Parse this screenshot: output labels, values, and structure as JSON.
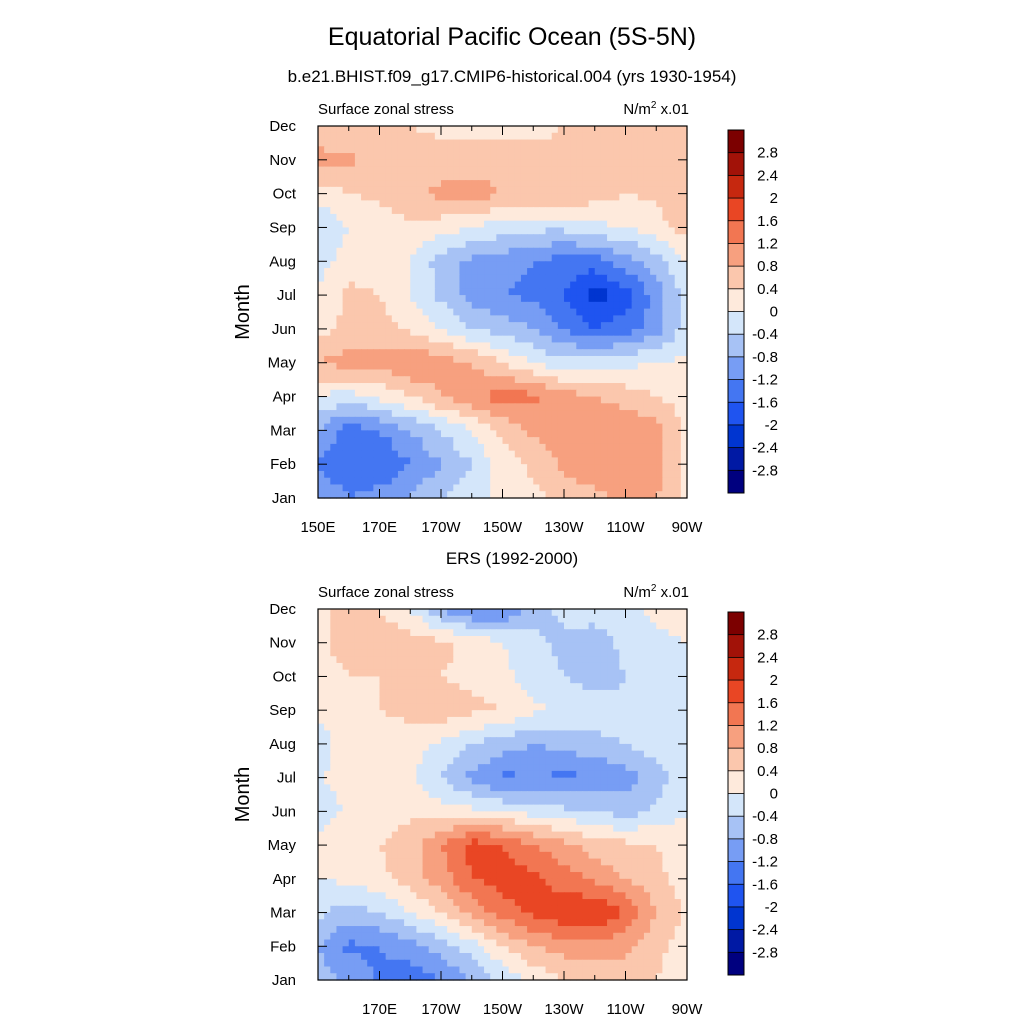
{
  "figure": {
    "title": "Equatorial Pacific Ocean (5S-5N)"
  },
  "colorbar": {
    "levels": [
      -2.8,
      -2.4,
      -2,
      -1.6,
      -1.2,
      -0.8,
      -0.4,
      0,
      0.4,
      0.8,
      1.2,
      1.6,
      2,
      2.4,
      2.8
    ],
    "labels": [
      "2.8",
      "2.4",
      "2",
      "1.6",
      "1.2",
      "0.8",
      "0.4",
      "0",
      "-0.4",
      "-0.8",
      "-1.2",
      "-1.6",
      "-2",
      "-2.4",
      "-2.8"
    ],
    "colors": [
      "#00007f",
      "#0019a4",
      "#0035d0",
      "#1f54f0",
      "#4476f2",
      "#779df4",
      "#a7c2f5",
      "#d4e6fa",
      "#feeadc",
      "#fbc7ad",
      "#f7a07f",
      "#f27652",
      "#e94624",
      "#c6280f",
      "#a21208",
      "#7c0000"
    ]
  },
  "chart_data": [
    {
      "type": "heatmap",
      "title": "b.e21.BHIST.f09_g17.CMIP6-historical.004 (yrs 1930-1954)",
      "left_string": "Surface zonal stress",
      "right_string_prefix": "N/m",
      "right_string_sup": "2",
      "right_string_suffix": " x.01",
      "ylabel": "Month",
      "xlabel": "",
      "x_tick_labels": [
        "150E",
        "170E",
        "170W",
        "150W",
        "130W",
        "110W",
        "90W"
      ],
      "y_tick_labels": [
        "Jan",
        "Feb",
        "Mar",
        "Apr",
        "May",
        "Jun",
        "Jul",
        "Aug",
        "Sep",
        "Oct",
        "Nov",
        "Dec"
      ],
      "x_lon": [
        150,
        160,
        170,
        180,
        190,
        200,
        210,
        220,
        230,
        240,
        250,
        260,
        270
      ],
      "y_month": [
        1,
        2,
        3,
        4,
        5,
        6,
        7,
        8,
        9,
        10,
        11,
        12
      ],
      "xlim": [
        150,
        270
      ],
      "ylim": [
        1,
        12
      ],
      "values": [
        [
          -0.8,
          -1.2,
          -1.0,
          -0.8,
          -0.4,
          -0.2,
          0.1,
          0.3,
          0.5,
          0.7,
          0.9,
          0.8,
          0.3
        ],
        [
          -1.2,
          -1.6,
          -1.6,
          -1.2,
          -0.8,
          -0.4,
          0.2,
          0.5,
          0.9,
          1.1,
          1.1,
          1.0,
          0.3
        ],
        [
          -0.8,
          -1.4,
          -1.2,
          -0.8,
          -0.4,
          0.0,
          0.5,
          0.9,
          1.0,
          1.2,
          1.1,
          1.0,
          0.3
        ],
        [
          0.0,
          -0.2,
          0.1,
          0.4,
          0.8,
          1.1,
          1.4,
          1.3,
          1.0,
          0.8,
          0.6,
          0.4,
          0.2
        ],
        [
          0.8,
          1.0,
          1.0,
          1.2,
          1.0,
          0.8,
          0.4,
          0.0,
          -0.3,
          -0.2,
          -0.1,
          0.0,
          0.1
        ],
        [
          0.2,
          0.5,
          0.6,
          0.3,
          0.0,
          -0.4,
          -0.6,
          -0.8,
          -1.2,
          -1.6,
          -1.4,
          -1.0,
          -0.2
        ],
        [
          0.1,
          0.5,
          0.4,
          0.0,
          -0.5,
          -1.0,
          -1.2,
          -1.3,
          -1.6,
          -2.2,
          -1.8,
          -1.0,
          -0.2
        ],
        [
          -0.2,
          0.2,
          0.2,
          0.0,
          -0.6,
          -0.9,
          -1.0,
          -1.2,
          -1.4,
          -1.4,
          -1.0,
          -0.6,
          0.0
        ],
        [
          -0.4,
          0.0,
          0.2,
          0.3,
          0.2,
          0.0,
          -0.2,
          -0.3,
          -0.3,
          -0.1,
          0.0,
          0.2,
          0.6
        ],
        [
          0.2,
          0.4,
          0.5,
          0.7,
          0.9,
          1.0,
          0.8,
          0.8,
          0.8,
          0.6,
          0.4,
          0.5,
          0.8
        ],
        [
          1.0,
          0.9,
          0.7,
          0.6,
          0.6,
          0.6,
          0.6,
          0.5,
          0.5,
          0.5,
          0.5,
          0.6,
          0.7
        ],
        [
          0.4,
          0.4,
          0.5,
          0.4,
          0.3,
          0.3,
          0.3,
          0.3,
          0.4,
          0.4,
          0.5,
          0.5,
          0.5
        ]
      ]
    },
    {
      "type": "heatmap",
      "title": "ERS (1992-2000)",
      "left_string": "Surface zonal stress",
      "right_string_prefix": "N/m",
      "right_string_sup": "2",
      "right_string_suffix": " x.01",
      "ylabel": "Month",
      "xlabel": "",
      "x_tick_labels": [
        "170E",
        "170W",
        "150W",
        "130W",
        "110W",
        "90W"
      ],
      "y_tick_labels": [
        "Jan",
        "Feb",
        "Mar",
        "Apr",
        "May",
        "Jun",
        "Jul",
        "Aug",
        "Sep",
        "Oct",
        "Nov",
        "Dec"
      ],
      "x_lon": [
        150,
        160,
        170,
        180,
        190,
        200,
        210,
        220,
        230,
        240,
        250,
        260,
        270
      ],
      "y_month": [
        1,
        2,
        3,
        4,
        5,
        6,
        7,
        8,
        9,
        10,
        11,
        12
      ],
      "xlim": [
        150,
        270
      ],
      "ylim": [
        1,
        12
      ],
      "values": [
        [
          -0.6,
          -0.9,
          -1.3,
          -1.4,
          -1.2,
          -0.8,
          -0.3,
          0.1,
          0.4,
          0.5,
          0.6,
          0.4,
          0.1
        ],
        [
          -0.8,
          -1.3,
          -1.2,
          -1.0,
          -0.6,
          -0.2,
          0.4,
          0.8,
          1.0,
          1.0,
          0.9,
          0.5,
          0.2
        ],
        [
          -0.3,
          -0.6,
          -0.4,
          0.0,
          0.4,
          0.9,
          1.4,
          1.7,
          1.9,
          2.0,
          1.6,
          0.8,
          0.3
        ],
        [
          0.0,
          0.1,
          0.3,
          0.6,
          1.0,
          1.6,
          1.8,
          1.7,
          1.4,
          1.1,
          0.8,
          0.5,
          0.2
        ],
        [
          0.2,
          0.4,
          0.4,
          0.6,
          1.2,
          1.8,
          1.6,
          1.2,
          0.9,
          0.6,
          0.5,
          0.4,
          0.2
        ],
        [
          -0.3,
          0.1,
          0.2,
          0.3,
          0.2,
          0.1,
          0.0,
          -0.2,
          -0.3,
          -0.4,
          -0.6,
          -0.3,
          0.0
        ],
        [
          0.0,
          0.1,
          0.2,
          0.1,
          -0.4,
          -0.9,
          -1.3,
          -1.2,
          -1.3,
          -1.2,
          -1.0,
          -0.6,
          -0.1
        ],
        [
          -0.2,
          0.2,
          0.3,
          0.2,
          -0.1,
          -0.4,
          -0.6,
          -0.8,
          -0.7,
          -0.5,
          -0.4,
          -0.2,
          0.0
        ],
        [
          0.1,
          0.3,
          0.4,
          0.5,
          0.7,
          0.5,
          0.4,
          0.1,
          -0.1,
          -0.2,
          -0.3,
          -0.2,
          0.0
        ],
        [
          0.2,
          0.4,
          0.4,
          0.5,
          0.4,
          0.3,
          0.1,
          -0.2,
          -0.4,
          -0.6,
          -0.4,
          -0.2,
          0.0
        ],
        [
          0.3,
          0.6,
          0.7,
          0.6,
          0.5,
          0.3,
          0.0,
          -0.3,
          -0.5,
          -0.6,
          -0.3,
          -0.1,
          0.0
        ],
        [
          0.3,
          0.5,
          0.4,
          0.0,
          -0.8,
          -1.3,
          -1.2,
          -0.6,
          -0.3,
          -0.2,
          -0.1,
          0.1,
          0.2
        ]
      ]
    }
  ]
}
